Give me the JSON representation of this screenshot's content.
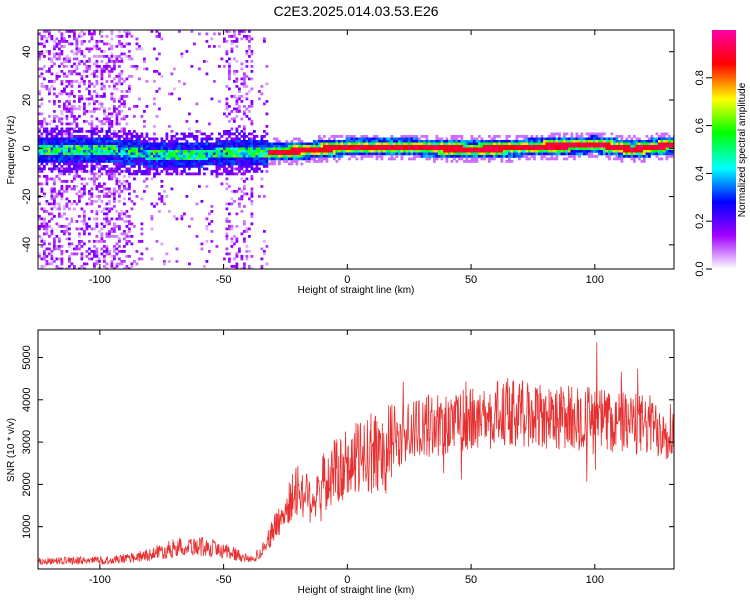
{
  "title": "C2E3.2025.014.03.53.E26",
  "chart_data": [
    {
      "type": "heatmap",
      "title": "C2E3.2025.014.03.53.E26",
      "xlabel": "Height of straight line (km)",
      "ylabel": "Frequency (Hz)",
      "xlim": [
        -125,
        132
      ],
      "ylim": [
        -50,
        49
      ],
      "x_ticks": [
        -100,
        -50,
        0,
        50,
        100
      ],
      "y_ticks": [
        -40,
        -20,
        0,
        20,
        40
      ],
      "colorbar": {
        "label": "Normalized spectral amplitude",
        "range": [
          0,
          1
        ],
        "ticks": [
          "0.0",
          "0.2",
          "0.4",
          "0.6",
          "0.8"
        ],
        "tick_values": [
          0,
          0.2,
          0.4,
          0.6,
          0.8
        ],
        "colors": [
          "#ffffff",
          "#a000ff",
          "#0000ff",
          "#00ffff",
          "#00ff00",
          "#ffff00",
          "#ff0000",
          "#ff00aa"
        ]
      },
      "ridge": {
        "x": [
          -125,
          -100,
          -80,
          -60,
          -45,
          -35,
          -25,
          0,
          25,
          50,
          75,
          100,
          115,
          132
        ],
        "frequency": [
          0,
          0,
          -2,
          -2,
          -1,
          -1,
          -1,
          1,
          1,
          0,
          1,
          2,
          0,
          2
        ]
      }
    },
    {
      "type": "line",
      "xlabel": "Height of straight line (km)",
      "ylabel": "SNR (10 * v/v)",
      "xlim": [
        -125,
        132
      ],
      "ylim": [
        0,
        5650
      ],
      "x_ticks": [
        -100,
        -50,
        0,
        50,
        100
      ],
      "y_ticks": [
        1000,
        2000,
        3000,
        4000,
        5000
      ],
      "color": "#e83030",
      "series": [
        {
          "x": [
            -125,
            -110,
            -95,
            -85,
            -75,
            -65,
            -55,
            -45,
            -38,
            -33,
            -30,
            -25,
            -20,
            -15,
            -10,
            -5,
            0,
            5,
            10,
            15,
            20,
            25,
            30,
            40,
            50,
            60,
            70,
            80,
            90,
            100,
            110,
            120,
            132
          ],
          "values": [
            180,
            200,
            210,
            280,
            420,
            560,
            500,
            350,
            200,
            600,
            900,
            1400,
            1900,
            1650,
            2000,
            2300,
            2450,
            2600,
            2750,
            2850,
            3000,
            3250,
            3350,
            3450,
            3500,
            3650,
            3700,
            3550,
            3600,
            3550,
            3450,
            3400,
            3300
          ]
        }
      ]
    }
  ]
}
